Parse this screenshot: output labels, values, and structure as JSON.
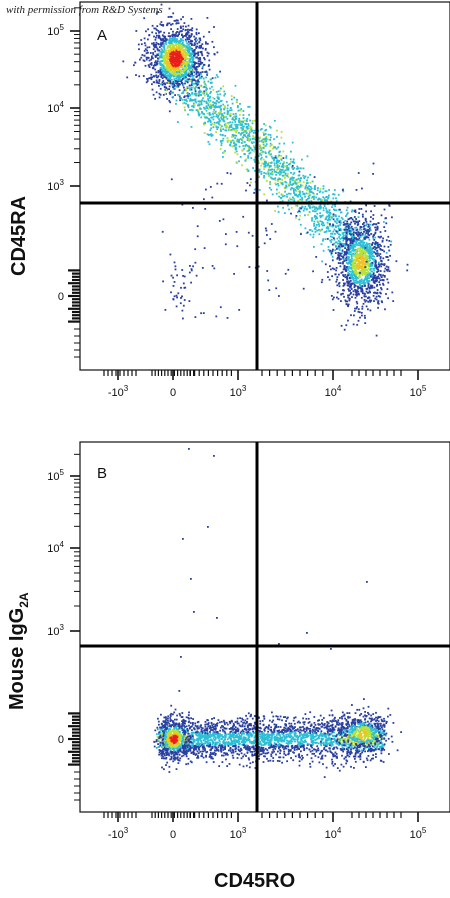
{
  "watermark": "with permission from R&D Systems",
  "chart_data": [
    {
      "type": "scatter",
      "panel_label": "A",
      "ylabel": "CD45RA",
      "xlabel": "",
      "x_scale": "biexponential",
      "y_scale": "biexponential",
      "x_ticks": [
        {
          "value": -1000,
          "base": "-10",
          "exp": "3"
        },
        {
          "value": 0,
          "base": "0",
          "exp": ""
        },
        {
          "value": 1000,
          "base": "10",
          "exp": "3"
        },
        {
          "value": 10000,
          "base": "10",
          "exp": "4"
        },
        {
          "value": 100000,
          "base": "10",
          "exp": "5"
        }
      ],
      "y_ticks": [
        {
          "value": 0,
          "base": "0",
          "exp": ""
        },
        {
          "value": 1000,
          "base": "10",
          "exp": "3"
        },
        {
          "value": 10000,
          "base": "10",
          "exp": "4"
        },
        {
          "value": 100000,
          "base": "10",
          "exp": "5"
        }
      ],
      "quadrant_gate": {
        "x": 2000,
        "y": 700
      },
      "populations": [
        {
          "center_x": 100,
          "center_y": 40000,
          "description": "high-density CD45RA+ cluster"
        },
        {
          "center_x": 25000,
          "center_y": 200,
          "description": "CD45RO+ cluster"
        }
      ]
    },
    {
      "type": "scatter",
      "panel_label": "B",
      "ylabel_main": "Mouse IgG",
      "ylabel_sub": "2A",
      "xlabel": "CD45RO",
      "x_scale": "biexponential",
      "y_scale": "biexponential",
      "x_ticks": [
        {
          "value": -1000,
          "base": "-10",
          "exp": "3"
        },
        {
          "value": 0,
          "base": "0",
          "exp": ""
        },
        {
          "value": 1000,
          "base": "10",
          "exp": "3"
        },
        {
          "value": 10000,
          "base": "10",
          "exp": "4"
        },
        {
          "value": 100000,
          "base": "10",
          "exp": "5"
        }
      ],
      "y_ticks": [
        {
          "value": 0,
          "base": "0",
          "exp": ""
        },
        {
          "value": 1000,
          "base": "10",
          "exp": "3"
        },
        {
          "value": 10000,
          "base": "10",
          "exp": "4"
        },
        {
          "value": 100000,
          "base": "10",
          "exp": "5"
        }
      ],
      "quadrant_gate": {
        "x": 2000,
        "y": 700
      },
      "populations": [
        {
          "center_x": 0,
          "center_y": 0,
          "description": "horizontal band near y=0 from x≈-500 to 40000"
        }
      ]
    }
  ],
  "colors": {
    "low": "#2a3fa0",
    "mid": "#2bbfd6",
    "midhigh": "#b6e23a",
    "high": "#f5c21b",
    "peak": "#e8201a"
  }
}
